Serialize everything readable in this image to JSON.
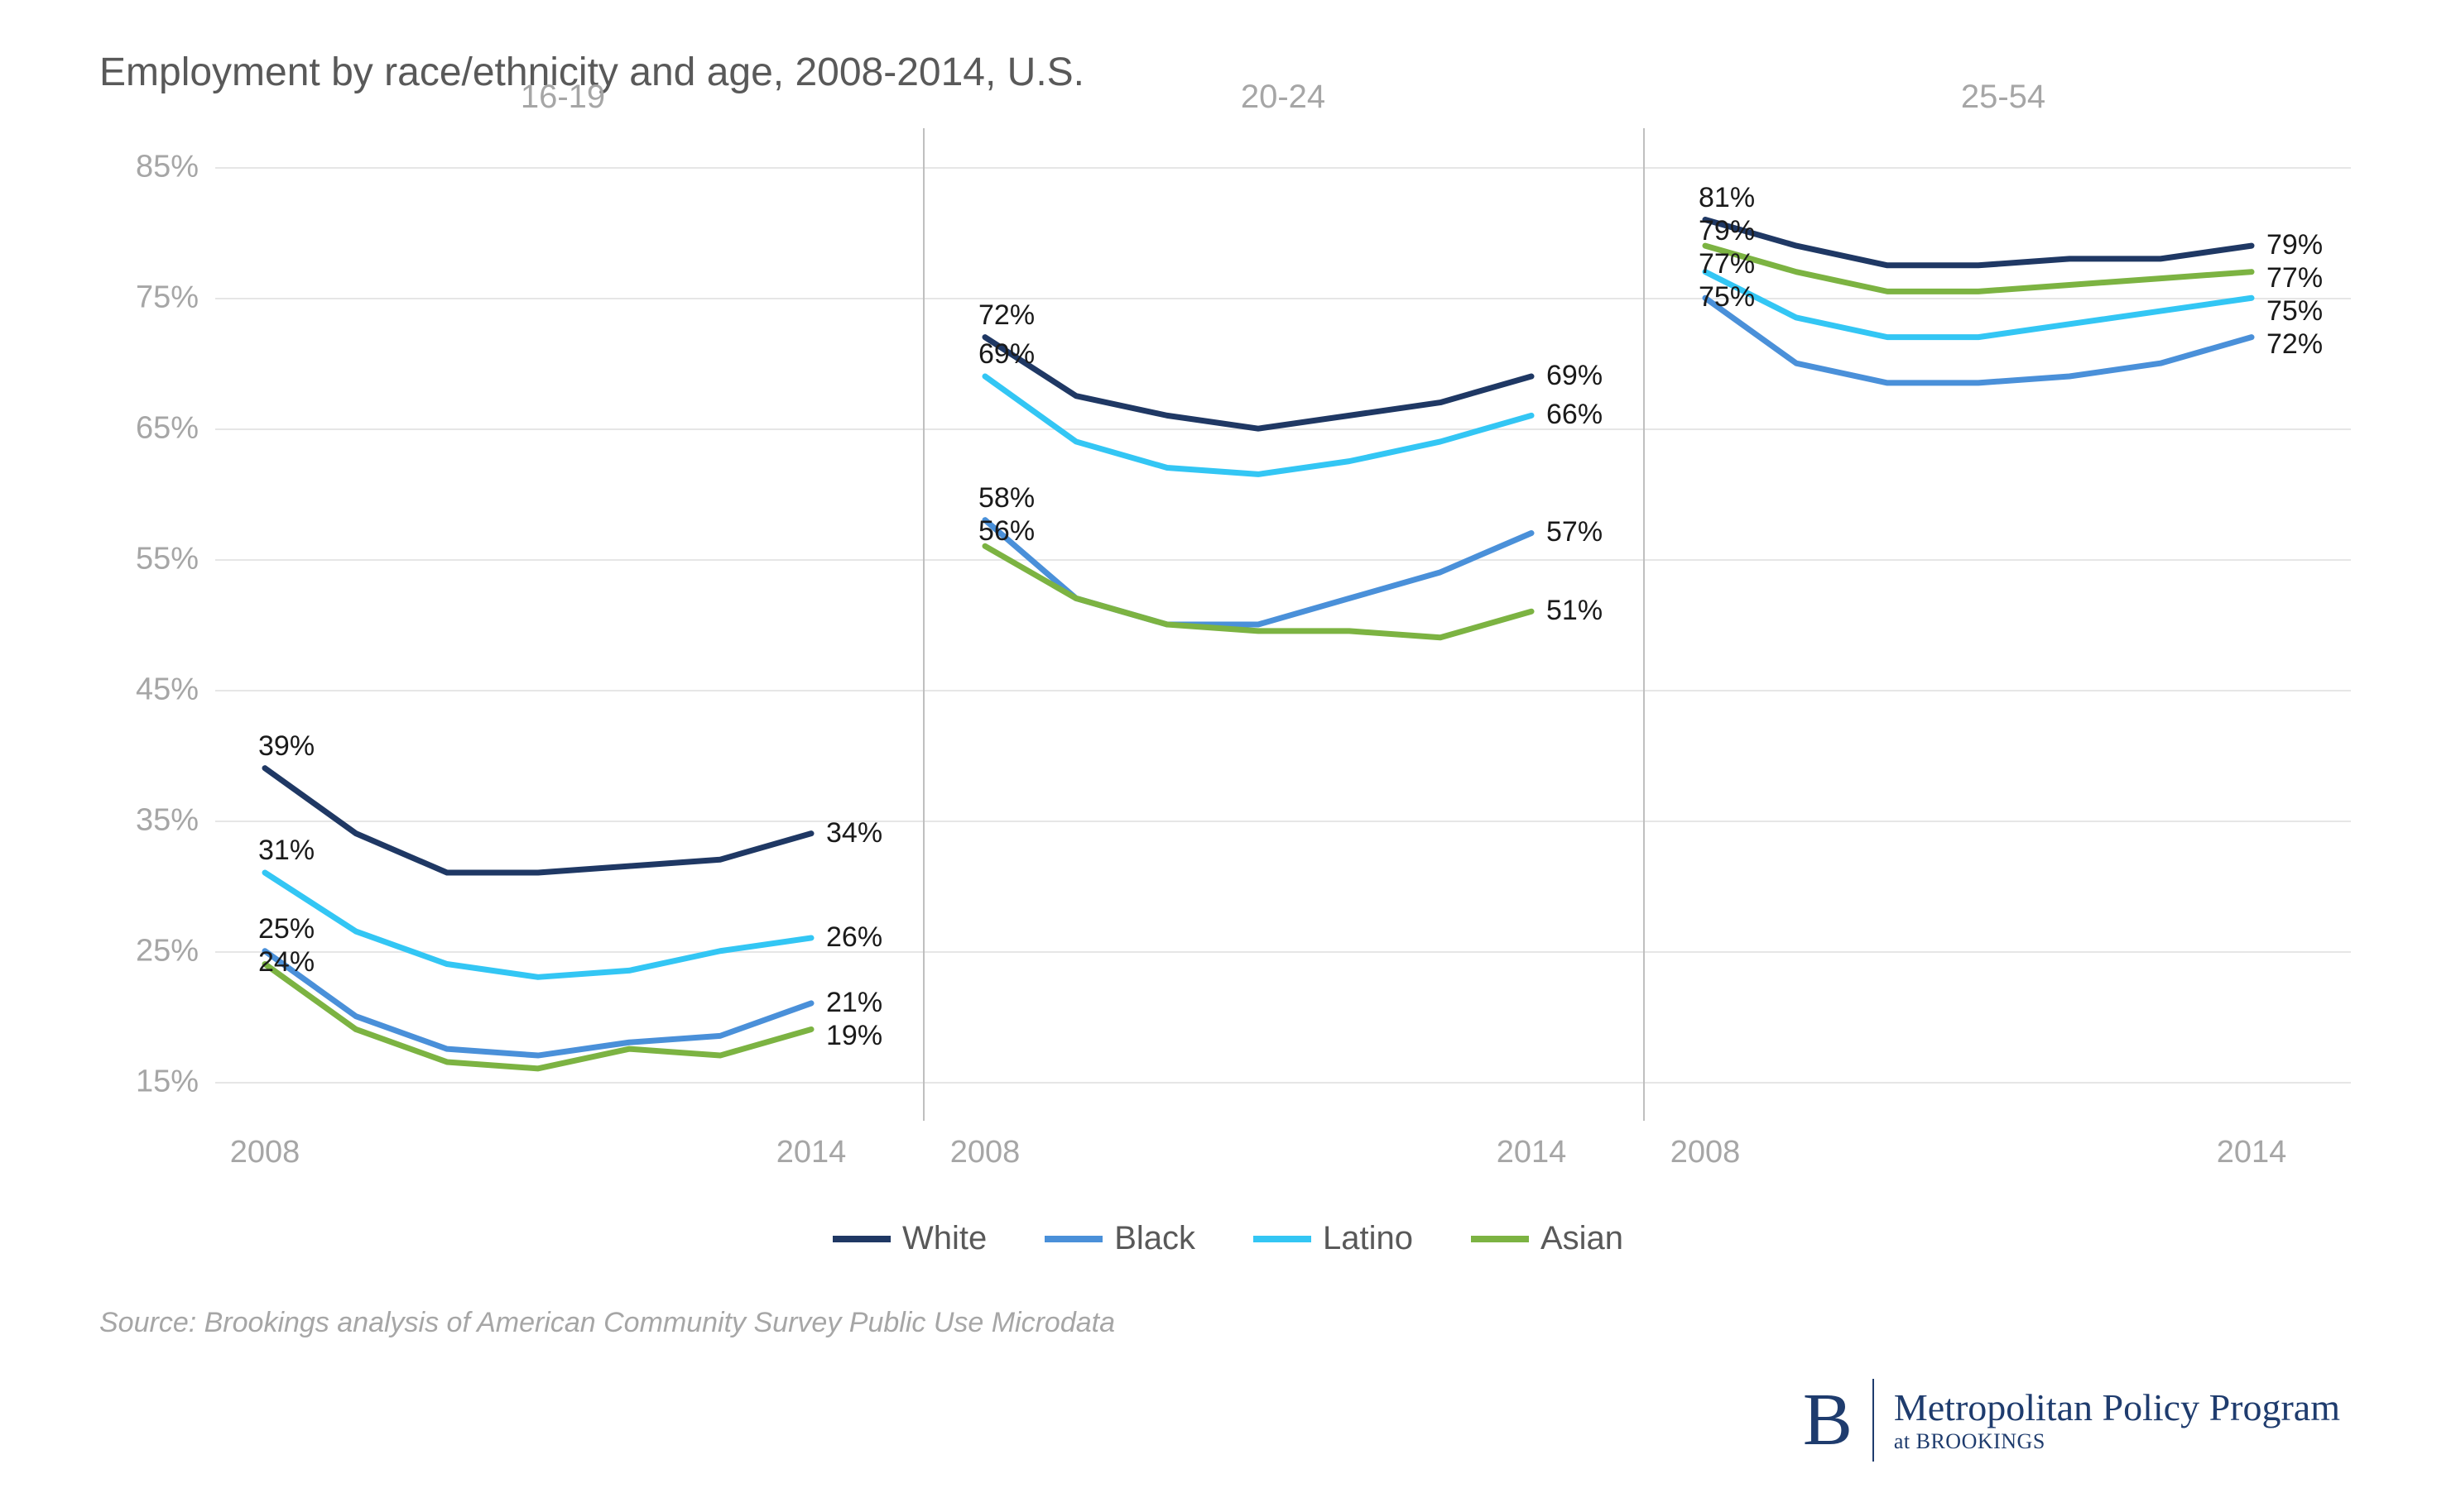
{
  "title": "Employment by race/ethnicity and age, 2008-2014, U.S.",
  "source": "Source: Brookings analysis of American Community Survey Public Use Microdata",
  "footer": {
    "letter": "B",
    "line1": "Metropolitan Policy Program",
    "line2": "at BROOKINGS"
  },
  "chart": {
    "type": "line",
    "ylim": [
      12,
      88
    ],
    "yticks": [
      15,
      25,
      35,
      45,
      55,
      65,
      75,
      85
    ],
    "ytick_labels": [
      "15%",
      "25%",
      "35%",
      "45%",
      "55%",
      "65%",
      "75%",
      "85%"
    ],
    "grid_color": "#e6e6e6",
    "divider_color": "#bfbfbf",
    "background_color": "#ffffff",
    "line_width": 7,
    "label_fontsize": 34,
    "axis_fontsize": 38,
    "title_fontsize": 48,
    "panel_title_fontsize": 40,
    "years": [
      2008,
      2009,
      2010,
      2011,
      2012,
      2013,
      2014
    ],
    "x_labels": [
      "2008",
      "2014"
    ],
    "panels": [
      {
        "title": "16-19",
        "series": [
          {
            "key": "white",
            "values": [
              39,
              34,
              31,
              31,
              31.5,
              32,
              34
            ],
            "start_label": "39%",
            "end_label": "34%"
          },
          {
            "key": "black",
            "values": [
              25,
              20,
              17.5,
              17,
              18,
              18.5,
              21
            ],
            "start_label": "25%",
            "end_label": "21%"
          },
          {
            "key": "latino",
            "values": [
              31,
              26.5,
              24,
              23,
              23.5,
              25,
              26
            ],
            "start_label": "31%",
            "end_label": "26%"
          },
          {
            "key": "asian",
            "values": [
              24,
              19,
              16.5,
              16,
              17.5,
              17,
              19
            ],
            "start_label": "24%",
            "end_label": "19%"
          }
        ]
      },
      {
        "title": "20-24",
        "series": [
          {
            "key": "white",
            "values": [
              72,
              67.5,
              66,
              65,
              66,
              67,
              69
            ],
            "start_label": "72%",
            "end_label": "69%"
          },
          {
            "key": "black",
            "values": [
              58,
              52,
              50,
              50,
              52,
              54,
              57
            ],
            "start_label": "58%",
            "end_label": "57%"
          },
          {
            "key": "latino",
            "values": [
              69,
              64,
              62,
              61.5,
              62.5,
              64,
              66
            ],
            "start_label": "69%",
            "end_label": "66%"
          },
          {
            "key": "asian",
            "values": [
              56,
              52,
              50,
              49.5,
              49.5,
              49,
              51
            ],
            "start_label": "56%",
            "end_label": "51%"
          }
        ]
      },
      {
        "title": "25-54",
        "series": [
          {
            "key": "white",
            "values": [
              81,
              79,
              77.5,
              77.5,
              78,
              78,
              79
            ],
            "start_label": "81%",
            "end_label": "79%"
          },
          {
            "key": "black",
            "values": [
              75,
              70,
              68.5,
              68.5,
              69,
              70,
              72
            ],
            "start_label": "75%",
            "end_label": "72%"
          },
          {
            "key": "latino",
            "values": [
              77,
              73.5,
              72,
              72,
              73,
              74,
              75
            ],
            "start_label": "77%",
            "end_label": "75%"
          },
          {
            "key": "asian",
            "values": [
              79,
              77,
              75.5,
              75.5,
              76,
              76.5,
              77
            ],
            "start_label": "79%",
            "end_label": "77%"
          }
        ]
      }
    ],
    "series_meta": {
      "white": {
        "label": "White",
        "color": "#1f3864"
      },
      "black": {
        "label": "Black",
        "color": "#4a90d9"
      },
      "latino": {
        "label": "Latino",
        "color": "#33c6f4"
      },
      "asian": {
        "label": "Asian",
        "color": "#7cb342"
      }
    },
    "legend_order": [
      "white",
      "black",
      "latino",
      "asian"
    ]
  }
}
